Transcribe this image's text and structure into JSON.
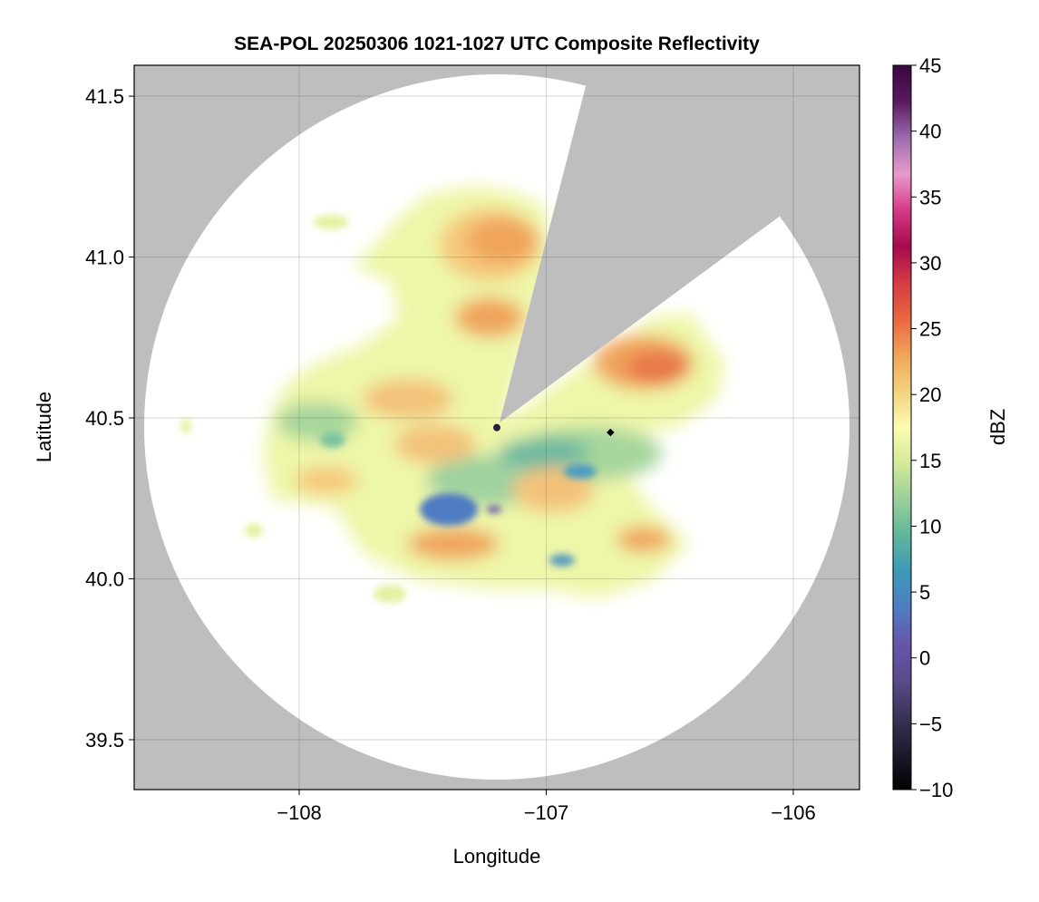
{
  "chart_data": {
    "type": "heatmap",
    "title": "SEA-POL 20250306 1021-1027 UTC Composite Reflectivity",
    "xlabel": "Longitude",
    "ylabel": "Latitude",
    "xlim": [
      -108.668,
      -105.732
    ],
    "ylim": [
      39.345,
      41.596
    ],
    "xticks": [
      -108,
      -107,
      -106
    ],
    "xtick_labels": [
      "−108",
      "−107",
      "−106"
    ],
    "yticks": [
      39.5,
      40.0,
      40.5,
      41.0,
      41.5
    ],
    "ytick_labels": [
      "39.5",
      "40.0",
      "40.5",
      "41.0",
      "41.5"
    ],
    "grid": true,
    "colorbar": {
      "label": "dBZ",
      "range": [
        -10,
        45
      ],
      "ticks": [
        -10,
        -5,
        0,
        5,
        10,
        15,
        20,
        25,
        30,
        35,
        40,
        45
      ],
      "tick_labels": [
        "−10",
        "−5",
        "0",
        "5",
        "10",
        "15",
        "20",
        "25",
        "30",
        "35",
        "40",
        "45"
      ],
      "colors": [
        "#000000",
        "#1e1a2e",
        "#3a3356",
        "#5a4a8a",
        "#6655a8",
        "#4f7cc2",
        "#3d98b8",
        "#5fb59a",
        "#98cf9b",
        "#d3e99a",
        "#fcfcb4",
        "#f3d27e",
        "#f0a45c",
        "#e8673f",
        "#d63a43",
        "#a6094e",
        "#d63a86",
        "#e79bc9",
        "#9c6bb0",
        "#5a1a5e",
        "#3a0640"
      ]
    },
    "radar_site": {
      "lon": -107.2,
      "lat": 40.47
    },
    "marker_site": {
      "lon": -106.74,
      "lat": 40.455
    },
    "radar_range_deg_lon": 1.43,
    "background_color": "#bebebe"
  }
}
